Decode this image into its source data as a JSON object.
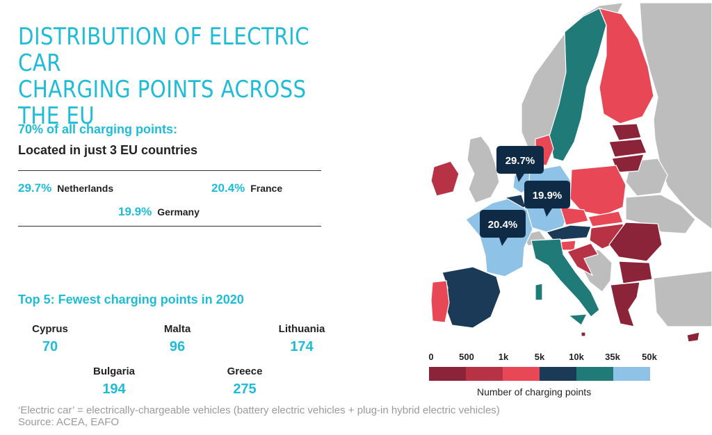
{
  "title_line1": "DISTRIBUTION OF ELECTRIC CAR",
  "title_line2": "CHARGING POINTS ACROSS THE EU",
  "subtitle_highlight": "70% of all charging points:",
  "subtitle": "Located in just 3 EU countries",
  "shares": [
    {
      "pct": "29.7%",
      "country": "Netherlands"
    },
    {
      "pct": "20.4%",
      "country": "France"
    },
    {
      "pct": "19.9%",
      "country": "Germany"
    }
  ],
  "top5_heading": "Top 5: Fewest charging points in 2020",
  "top5": [
    {
      "country": "Cyprus",
      "value": "70"
    },
    {
      "country": "Malta",
      "value": "96"
    },
    {
      "country": "Lithuania",
      "value": "174"
    },
    {
      "country": "Bulgaria",
      "value": "194"
    },
    {
      "country": "Greece",
      "value": "275"
    }
  ],
  "map_callouts": [
    {
      "label": "29.7%",
      "country": "Netherlands"
    },
    {
      "label": "19.9%",
      "country": "Germany"
    },
    {
      "label": "20.4%",
      "country": "France"
    }
  ],
  "legend": {
    "title": "Number of charging points",
    "ticks": [
      "0",
      "500",
      "1k",
      "5k",
      "10k",
      "35k",
      "50k"
    ],
    "colors": [
      "#8b2339",
      "#b83245",
      "#e84855",
      "#1b3a57",
      "#1f7a78",
      "#8ec2e6"
    ]
  },
  "colors": {
    "accent": "#1ebcd6",
    "non_eu": "#bdbdbd",
    "sea": "#ffffff"
  },
  "footnote_line1": "‘Electric car’ = electrically-chargeable vehicles (battery electric vehicles + plug-in hybrid electric vehicles)",
  "footnote_line2": "Source: ACEA, EAFO"
}
